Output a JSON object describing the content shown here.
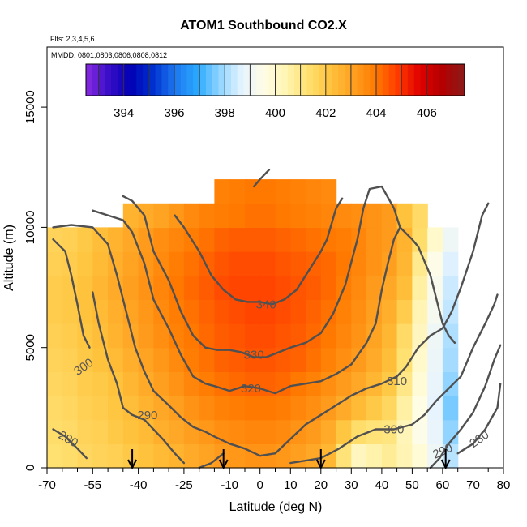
{
  "chart_data": {
    "type": "heatmap",
    "title": "ATOM1 Southbound CO2.X",
    "annotation_flights": "Flts: 2,3,4,5,6",
    "annotation_dates": "MMDD: 0801,0803,0806,0808,0812",
    "xlabel": "Latitude (deg N)",
    "ylabel": "Altitude (m)",
    "xlim": [
      -70,
      80
    ],
    "ylim": [
      0,
      17500
    ],
    "x_major_ticks": [
      -70,
      -55,
      -40,
      -25,
      -10,
      0,
      10,
      20,
      30,
      40,
      50,
      60,
      70,
      80
    ],
    "x_minor_ticks": [
      -65,
      -60,
      -50,
      -45,
      -35,
      -30,
      -20,
      -15,
      -5,
      5,
      15,
      25,
      35,
      45,
      55,
      65,
      75
    ],
    "y_ticks": [
      0,
      5000,
      10000,
      15000
    ],
    "colorbar": {
      "ticks": [
        394,
        396,
        398,
        400,
        402,
        404,
        406
      ],
      "range": [
        392.5,
        407.5
      ],
      "colors": [
        "#8a2be2",
        "#3a0fc8",
        "#0000b4",
        "#0030d0",
        "#1e78f0",
        "#28a8ff",
        "#90d4ff",
        "#e6f4ff",
        "#fffde6",
        "#fff4b0",
        "#ffe070",
        "#ffc23c",
        "#ffa020",
        "#ff7a00",
        "#ff3a00",
        "#e00000",
        "#b40000",
        "#8b1a1a"
      ]
    },
    "field": {
      "lat": [
        -67.5,
        -62.5,
        -57.5,
        -52.5,
        -47.5,
        -42.5,
        -37.5,
        -32.5,
        -27.5,
        -22.5,
        -17.5,
        -12.5,
        -7.5,
        -2.5,
        2.5,
        7.5,
        12.5,
        17.5,
        22.5,
        27.5,
        32.5,
        37.5,
        42.5,
        47.5,
        52.5,
        57.5,
        62.5
      ],
      "alt": [
        500,
        1500,
        2500,
        3500,
        4500,
        5500,
        6500,
        7500,
        8500,
        9500,
        10500,
        11500
      ],
      "co2": [
        [
          401.3,
          401.4,
          401.6,
          401.7,
          401.8,
          402.0,
          402.2,
          402.4,
          402.6,
          402.8,
          403.0,
          403.2,
          403.3,
          403.4,
          403.4,
          403.3,
          403.1,
          402.9,
          402.5,
          401.2,
          400.2,
          400.5,
          400.8,
          400.4,
          399.8,
          399.0,
          398.2
        ],
        [
          401.4,
          401.5,
          401.7,
          401.8,
          402.0,
          402.2,
          402.4,
          402.7,
          402.9,
          403.1,
          403.3,
          403.5,
          403.6,
          403.7,
          403.7,
          403.6,
          403.4,
          403.2,
          402.8,
          402.1,
          401.4,
          401.2,
          401.1,
          400.3,
          399.5,
          398.8,
          397.8
        ],
        [
          401.5,
          401.6,
          401.8,
          401.9,
          402.1,
          402.3,
          402.6,
          402.9,
          403.1,
          403.4,
          403.6,
          403.8,
          403.9,
          404.0,
          404.0,
          403.9,
          403.7,
          403.5,
          403.2,
          402.8,
          402.4,
          402.0,
          401.6,
          400.6,
          399.6,
          398.7,
          397.6
        ],
        [
          401.6,
          401.7,
          401.9,
          402.0,
          402.2,
          402.5,
          402.8,
          403.1,
          403.4,
          403.7,
          403.9,
          404.1,
          404.2,
          404.3,
          404.3,
          404.2,
          404.0,
          403.8,
          403.5,
          403.2,
          402.9,
          402.5,
          402.0,
          401.0,
          399.8,
          398.8,
          397.8
        ],
        [
          401.7,
          401.8,
          402.0,
          402.2,
          402.4,
          402.7,
          403.0,
          403.3,
          403.6,
          403.9,
          404.1,
          404.3,
          404.4,
          404.5,
          404.5,
          404.4,
          404.3,
          404.1,
          403.8,
          403.5,
          403.2,
          402.8,
          402.3,
          401.3,
          400.0,
          398.9,
          398.0
        ],
        [
          401.8,
          401.9,
          402.1,
          402.3,
          402.6,
          402.9,
          403.2,
          403.5,
          403.8,
          404.0,
          404.2,
          404.4,
          404.5,
          404.6,
          404.6,
          404.5,
          404.4,
          404.2,
          404.0,
          403.7,
          403.4,
          403.0,
          402.5,
          401.5,
          400.2,
          399.0,
          398.1
        ],
        [
          401.9,
          402.0,
          402.2,
          402.4,
          402.7,
          403.0,
          403.3,
          403.6,
          403.9,
          404.1,
          404.3,
          404.5,
          404.6,
          404.7,
          404.7,
          404.6,
          404.5,
          404.3,
          404.1,
          403.8,
          403.5,
          403.1,
          402.7,
          401.9,
          400.4,
          399.2,
          398.3
        ],
        [
          401.9,
          402.0,
          402.2,
          402.5,
          402.8,
          403.1,
          403.4,
          403.7,
          404.0,
          404.2,
          404.4,
          404.6,
          404.7,
          404.7,
          404.7,
          404.6,
          404.5,
          404.4,
          404.2,
          403.9,
          403.6,
          403.2,
          402.9,
          402.3,
          400.6,
          399.3,
          398.4
        ],
        [
          401.8,
          401.9,
          402.1,
          402.4,
          402.7,
          403.0,
          403.3,
          403.6,
          403.9,
          404.1,
          404.3,
          404.5,
          404.6,
          404.6,
          404.6,
          404.5,
          404.4,
          404.3,
          404.2,
          404.0,
          403.7,
          403.4,
          403.1,
          402.5,
          400.9,
          399.5,
          398.6
        ],
        [
          401.7,
          401.8,
          402.0,
          402.3,
          402.6,
          402.9,
          403.2,
          403.5,
          403.7,
          403.9,
          404.1,
          404.3,
          404.4,
          404.4,
          404.4,
          404.3,
          404.2,
          404.1,
          404.0,
          403.9,
          403.7,
          403.4,
          403.2,
          402.6,
          401.4,
          400.0,
          399.0
        ],
        [
          null,
          null,
          null,
          null,
          null,
          402.6,
          402.8,
          403.0,
          403.3,
          403.6,
          403.8,
          403.9,
          404.0,
          404.1,
          404.1,
          404.0,
          403.9,
          403.8,
          403.7,
          403.6,
          403.5,
          403.4,
          403.2,
          402.2,
          401.5,
          null,
          null
        ],
        [
          null,
          null,
          null,
          null,
          null,
          null,
          null,
          null,
          null,
          null,
          null,
          403.8,
          403.9,
          404.0,
          404.0,
          403.9,
          403.8,
          403.7,
          403.6,
          null,
          null,
          null,
          null,
          null,
          null,
          null,
          null
        ]
      ]
    },
    "contours": [
      {
        "level": "280",
        "points": [
          [
            -68,
            1600
          ],
          [
            -64,
            1300
          ],
          [
            -60,
            800
          ],
          [
            -57,
            400
          ]
        ]
      },
      {
        "level": "280",
        "points": [
          [
            65,
            600
          ],
          [
            70,
            1000
          ],
          [
            74,
            1600
          ],
          [
            78,
            2500
          ],
          [
            79,
            3500
          ]
        ]
      },
      {
        "level": "290",
        "points": [
          [
            -55,
            7300
          ],
          [
            -53,
            6000
          ],
          [
            -50,
            4500
          ],
          [
            -47,
            3500
          ],
          [
            -45,
            2500
          ],
          [
            -42,
            2200
          ],
          [
            -38,
            2000
          ],
          [
            -32,
            1200
          ],
          [
            -28,
            600
          ],
          [
            -25,
            200
          ]
        ]
      },
      {
        "level": "290",
        "points": [
          [
            56,
            0
          ],
          [
            59,
            400
          ],
          [
            62,
            1000
          ],
          [
            66,
            1600
          ],
          [
            70,
            2300
          ],
          [
            74,
            3400
          ],
          [
            77,
            4500
          ],
          [
            79,
            5100
          ]
        ]
      },
      {
        "level": "300",
        "points": [
          [
            -68,
            9500
          ],
          [
            -64,
            9000
          ],
          [
            -62,
            8000
          ],
          [
            -60,
            6800
          ],
          [
            -58,
            5500
          ],
          [
            -56,
            5000
          ]
        ]
      },
      {
        "level": "300",
        "points": [
          [
            -20,
            0
          ],
          [
            -16,
            200
          ],
          [
            -12,
            600
          ]
        ]
      },
      {
        "level": "300",
        "points": [
          [
            10,
            200
          ],
          [
            20,
            400
          ],
          [
            26,
            800
          ],
          [
            32,
            1300
          ],
          [
            38,
            1600
          ],
          [
            44,
            1600
          ],
          [
            50,
            1800
          ],
          [
            54,
            2200
          ],
          [
            58,
            2800
          ],
          [
            62,
            3300
          ],
          [
            66,
            3800
          ],
          [
            70,
            5000
          ],
          [
            74,
            6000
          ],
          [
            77,
            6800
          ],
          [
            78,
            7200
          ]
        ]
      },
      {
        "level": "310",
        "points": [
          [
            -68,
            10000
          ],
          [
            -62,
            10100
          ],
          [
            -55,
            10000
          ],
          [
            -50,
            9300
          ],
          [
            -47,
            8000
          ],
          [
            -44,
            6500
          ],
          [
            -41,
            5000
          ],
          [
            -38,
            4000
          ],
          [
            -35,
            3200
          ],
          [
            -30,
            2600
          ],
          [
            -26,
            2100
          ],
          [
            -22,
            1700
          ],
          [
            -18,
            1500
          ],
          [
            -15,
            1300
          ],
          [
            -10,
            1000
          ],
          [
            -5,
            800
          ],
          [
            0,
            500
          ],
          [
            5,
            600
          ],
          [
            10,
            1200
          ],
          [
            15,
            1800
          ],
          [
            20,
            2200
          ],
          [
            25,
            2600
          ],
          [
            30,
            3000
          ],
          [
            35,
            3300
          ],
          [
            40,
            3500
          ],
          [
            45,
            3800
          ],
          [
            48,
            4200
          ],
          [
            50,
            4600
          ],
          [
            52,
            5000
          ],
          [
            56,
            5500
          ],
          [
            60,
            5800
          ],
          [
            63,
            6500
          ],
          [
            66,
            7500
          ],
          [
            70,
            9000
          ],
          [
            73,
            10500
          ],
          [
            75,
            11000
          ]
        ]
      },
      {
        "level": "320",
        "points": [
          [
            -55,
            10700
          ],
          [
            -50,
            10500
          ],
          [
            -45,
            10300
          ],
          [
            -42,
            9800
          ],
          [
            -38,
            8500
          ],
          [
            -35,
            7000
          ],
          [
            -30,
            5800
          ],
          [
            -26,
            4700
          ],
          [
            -22,
            3800
          ],
          [
            -18,
            3500
          ],
          [
            -15,
            3400
          ],
          [
            -10,
            3200
          ],
          [
            -5,
            3400
          ],
          [
            0,
            3300
          ],
          [
            5,
            3100
          ],
          [
            10,
            3400
          ],
          [
            15,
            3500
          ],
          [
            20,
            3600
          ],
          [
            25,
            3900
          ],
          [
            30,
            4300
          ],
          [
            35,
            5200
          ],
          [
            38,
            6000
          ],
          [
            40,
            7400
          ],
          [
            42,
            8500
          ],
          [
            44,
            9500
          ],
          [
            46,
            10000
          ],
          [
            50,
            9500
          ],
          [
            52,
            9200
          ],
          [
            56,
            8000
          ],
          [
            60,
            6000
          ],
          [
            62,
            5500
          ],
          [
            64,
            5200
          ]
        ]
      },
      {
        "level": "330",
        "points": [
          [
            -45,
            11300
          ],
          [
            -42,
            11100
          ],
          [
            -38,
            10500
          ],
          [
            -35,
            9000
          ],
          [
            -30,
            7800
          ],
          [
            -26,
            6500
          ],
          [
            -22,
            5500
          ],
          [
            -18,
            5000
          ],
          [
            -14,
            4900
          ],
          [
            -10,
            4900
          ],
          [
            -6,
            4800
          ],
          [
            -2,
            4600
          ],
          [
            2,
            4600
          ],
          [
            6,
            4800
          ],
          [
            10,
            5000
          ],
          [
            15,
            5200
          ],
          [
            20,
            5600
          ],
          [
            24,
            6400
          ],
          [
            28,
            7600
          ],
          [
            32,
            9500
          ],
          [
            34,
            10800
          ],
          [
            36,
            11600
          ],
          [
            40,
            11700
          ],
          [
            44,
            10800
          ],
          [
            46,
            10000
          ]
        ]
      },
      {
        "level": "340",
        "points": [
          [
            -28,
            10500
          ],
          [
            -25,
            10000
          ],
          [
            -20,
            9000
          ],
          [
            -16,
            8000
          ],
          [
            -12,
            7400
          ],
          [
            -8,
            7000
          ],
          [
            -4,
            6900
          ],
          [
            0,
            6900
          ],
          [
            4,
            6800
          ],
          [
            8,
            7000
          ],
          [
            12,
            7400
          ],
          [
            16,
            8200
          ],
          [
            20,
            9000
          ],
          [
            22,
            9500
          ],
          [
            25,
            10800
          ],
          [
            27,
            11200
          ]
        ]
      },
      {
        "level": "340",
        "points": [
          [
            -2,
            11700
          ],
          [
            0,
            12000
          ],
          [
            3,
            12400
          ]
        ]
      }
    ],
    "flight_arrows": [
      -42,
      -12,
      20,
      61
    ],
    "contour_labels": [
      {
        "text": "280",
        "lat": -63,
        "alt": 1200,
        "angle": 30
      },
      {
        "text": "280",
        "lat": 72,
        "alt": 1200,
        "angle": -35
      },
      {
        "text": "290",
        "lat": -37,
        "alt": 2200,
        "angle": 0
      },
      {
        "text": "290",
        "lat": 60,
        "alt": 700,
        "angle": -25
      },
      {
        "text": "300",
        "lat": -58,
        "alt": 4200,
        "angle": -35
      },
      {
        "text": "300",
        "lat": 44,
        "alt": 1600,
        "angle": 0
      },
      {
        "text": "310",
        "lat": 45,
        "alt": 3600,
        "angle": 0
      },
      {
        "text": "320",
        "lat": -3,
        "alt": 3300,
        "angle": 0
      },
      {
        "text": "330",
        "lat": -2,
        "alt": 4700,
        "angle": 0
      },
      {
        "text": "340",
        "lat": 2,
        "alt": 6800,
        "angle": 0
      }
    ]
  }
}
